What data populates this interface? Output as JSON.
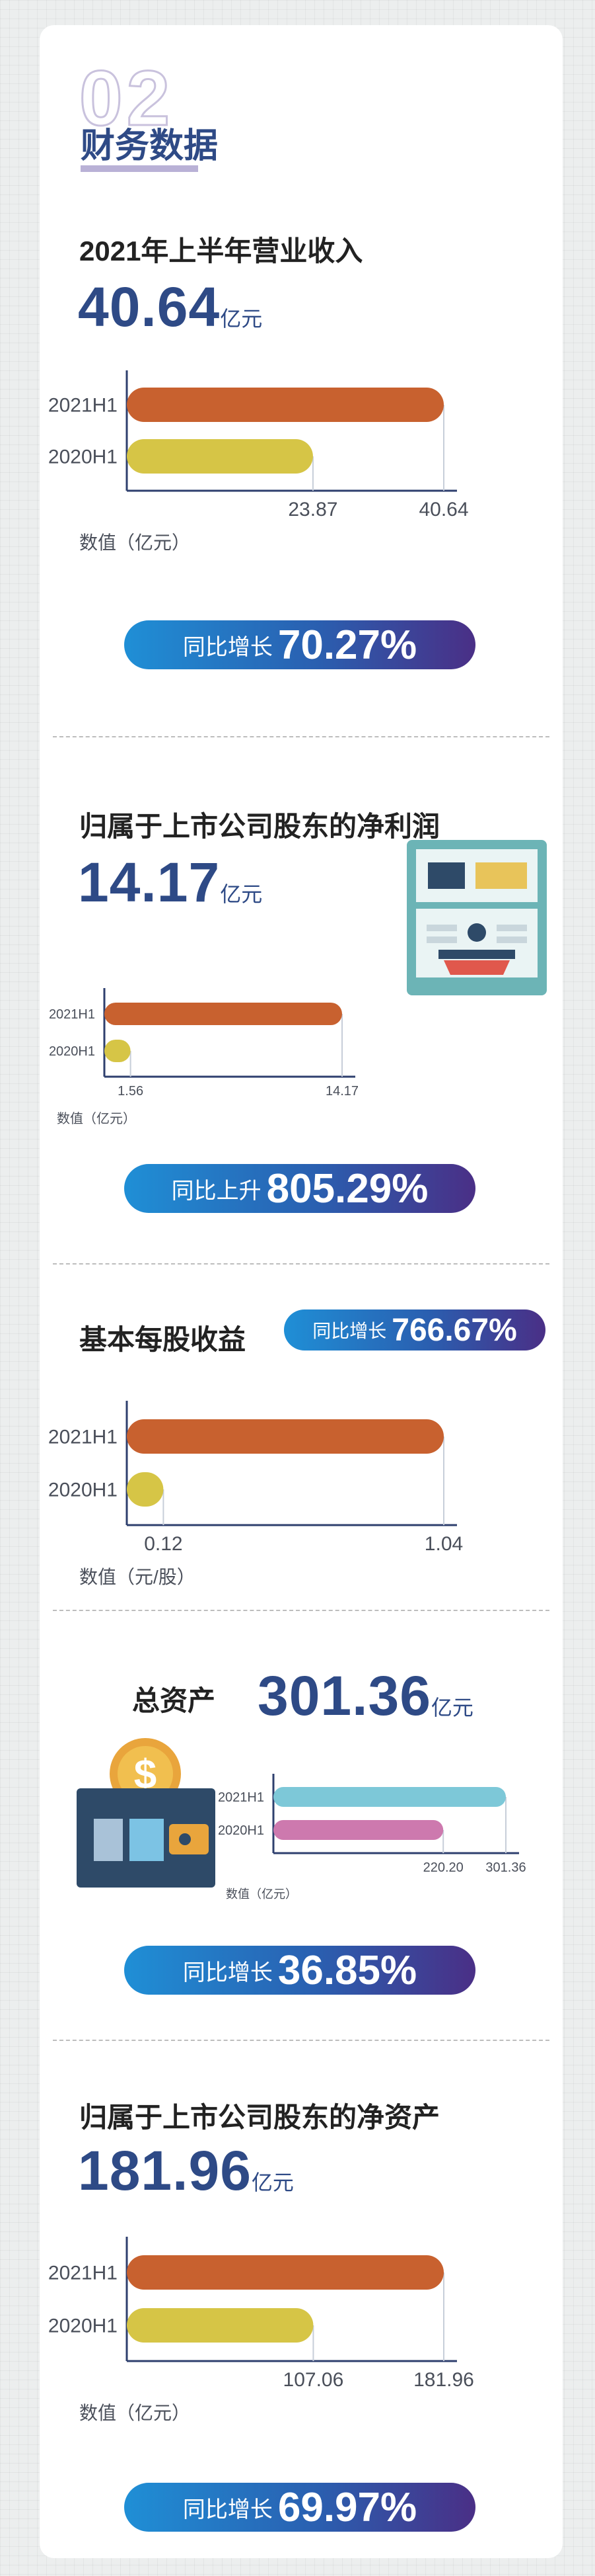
{
  "header": {
    "big_num": "02",
    "title": "财务数据"
  },
  "colors": {
    "primary": "#2e4a86",
    "bar_2021": "#c8612f",
    "bar_2020": "#d6c546",
    "asset_2021": "#7dc8d8",
    "asset_2020": "#cd79ae"
  },
  "sections": {
    "revenue": {
      "title": "2021年上半年营业收入",
      "value": "40.64",
      "unit": "亿元",
      "badge_label": "同比增长",
      "badge_value": "70.27%"
    },
    "net_profit": {
      "title": "归属于上市公司股东的净利润",
      "value": "14.17",
      "unit": "亿元",
      "badge_label": "同比上升",
      "badge_value": "805.29%",
      "icon": "atm-machine-icon"
    },
    "eps": {
      "title": "基本每股收益",
      "badge_label": "同比增长",
      "badge_value": "766.67%"
    },
    "assets": {
      "title": "总资产",
      "value": "301.36",
      "unit": "亿元",
      "badge_label": "同比增长",
      "badge_value": "36.85%",
      "icon": "wallet-coin-icon"
    },
    "net_assets": {
      "title": "归属于上市公司股东的净资产",
      "value": "181.96",
      "unit": "亿元",
      "badge_label": "同比增长",
      "badge_value": "69.97%"
    }
  },
  "chart_data": [
    {
      "type": "bar",
      "orientation": "horizontal",
      "categories": [
        "2021H1",
        "2020H1"
      ],
      "values": [
        40.64,
        23.87
      ],
      "xlabel": "数值（亿元）",
      "value_labels": [
        "40.64",
        "23.87"
      ]
    },
    {
      "type": "bar",
      "orientation": "horizontal",
      "categories": [
        "2021H1",
        "2020H1"
      ],
      "values": [
        14.17,
        1.56
      ],
      "xlabel": "数值（亿元）",
      "value_labels": [
        "14.17",
        "1.56"
      ]
    },
    {
      "type": "bar",
      "orientation": "horizontal",
      "categories": [
        "2021H1",
        "2020H1"
      ],
      "values": [
        1.04,
        0.12
      ],
      "xlabel": "数值（元/股）",
      "value_labels": [
        "1.04",
        "0.12"
      ]
    },
    {
      "type": "bar",
      "orientation": "horizontal",
      "categories": [
        "2021H1",
        "2020H1"
      ],
      "values": [
        301.36,
        220.2
      ],
      "xlabel": "数值（亿元）",
      "value_labels": [
        "301.36",
        "220.20"
      ]
    },
    {
      "type": "bar",
      "orientation": "horizontal",
      "categories": [
        "2021H1",
        "2020H1"
      ],
      "values": [
        181.96,
        107.06
      ],
      "xlabel": "数值（亿元）",
      "value_labels": [
        "181.96",
        "107.06"
      ]
    }
  ]
}
